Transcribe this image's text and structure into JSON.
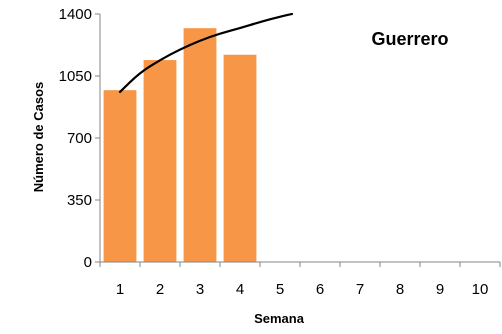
{
  "chart_data": {
    "type": "bar",
    "title": "Guerrero",
    "xlabel": "Semana",
    "ylabel": "Número de Casos",
    "categories": [
      "1",
      "2",
      "3",
      "4",
      "5",
      "6",
      "7",
      "8",
      "9",
      "10"
    ],
    "series": [
      {
        "type": "bar",
        "color": "#F79646",
        "values": [
          970,
          1140,
          1320,
          1170,
          null,
          null,
          null,
          null,
          null,
          null
        ]
      },
      {
        "type": "line",
        "color": "#000000",
        "x": [
          1,
          1.5,
          2,
          2.5,
          3,
          3.5,
          4,
          4.5,
          5,
          5.3
        ],
        "values": [
          960,
          1070,
          1140,
          1200,
          1250,
          1290,
          1320,
          1355,
          1385,
          1400
        ]
      }
    ],
    "yticks": [
      "0",
      "350",
      "700",
      "1050",
      "1400"
    ],
    "ylim": [
      0,
      1400
    ],
    "grid": false,
    "legend": "none"
  }
}
